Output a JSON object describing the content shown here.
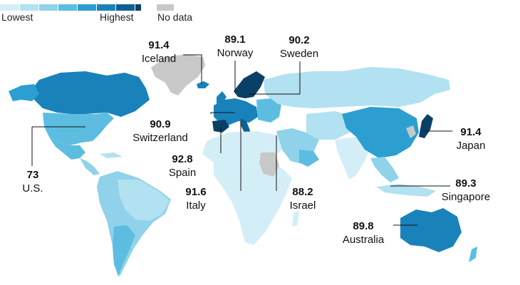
{
  "legend": {
    "lowest_label": "Lowest",
    "highest_label": "Highest",
    "nodata_label": "No data",
    "scale_colors": [
      "#d4eef7",
      "#b2e1f1",
      "#8fd2ea",
      "#5cbde1",
      "#2c9fd0",
      "#1a82ba",
      "#0f5f93",
      "#0a3f66"
    ],
    "nodata_color": "#c8c8c8"
  },
  "map": {
    "ocean_color": "#ffffff",
    "countries": [
      {
        "name": "Iceland",
        "value": 91.4,
        "label": "Iceland",
        "value_text": "91.4"
      },
      {
        "name": "Norway",
        "value": 89.1,
        "label": "Norway",
        "value_text": "89.1"
      },
      {
        "name": "Sweden",
        "value": 90.2,
        "label": "Sweden",
        "value_text": "90.2"
      },
      {
        "name": "Switzerland",
        "value": 90.9,
        "label": "Switzerland",
        "value_text": "90.9"
      },
      {
        "name": "Spain",
        "value": 92.8,
        "label": "Spain",
        "value_text": "92.8"
      },
      {
        "name": "Italy",
        "value": 91.6,
        "label": "Italy",
        "value_text": "91.6"
      },
      {
        "name": "Israel",
        "value": 88.2,
        "label": "Israel",
        "value_text": "88.2"
      },
      {
        "name": "Japan",
        "value": 91.4,
        "label": "Japan",
        "value_text": "91.4"
      },
      {
        "name": "Singapore",
        "value": 89.3,
        "label": "Singapore",
        "value_text": "89.3"
      },
      {
        "name": "Australia",
        "value": 89.8,
        "label": "Australia",
        "value_text": "89.8"
      },
      {
        "name": "U.S.",
        "value": 73,
        "label": "U.S.",
        "value_text": "73"
      }
    ]
  }
}
